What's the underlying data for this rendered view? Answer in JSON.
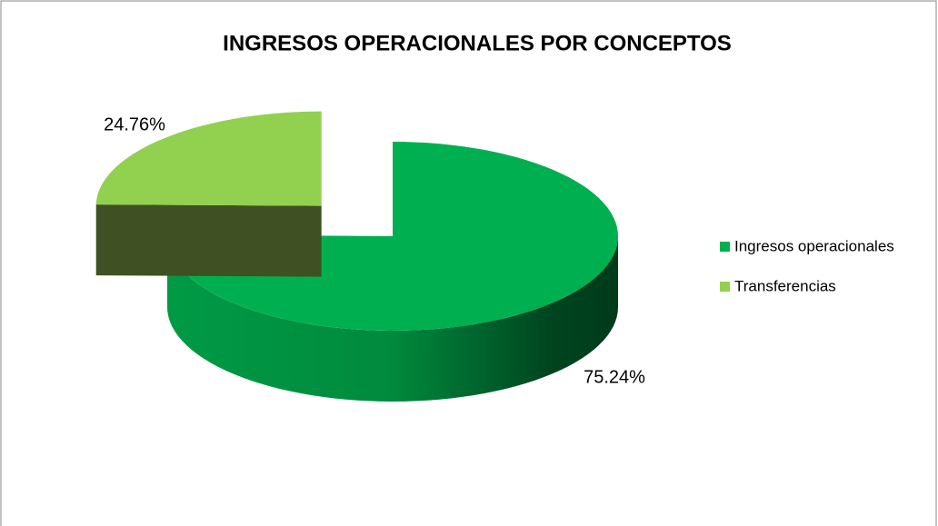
{
  "chart_data": {
    "type": "pie3d",
    "title": "INGRESOS OPERACIONALES POR CONCEPTOS",
    "categories": [
      "Ingresos operacionales",
      "Transferencias"
    ],
    "values": [
      75.24,
      24.76
    ],
    "value_labels": [
      "75.24%",
      "24.76%"
    ],
    "colors": [
      "#00b050",
      "#92d050"
    ],
    "legend": "right"
  }
}
